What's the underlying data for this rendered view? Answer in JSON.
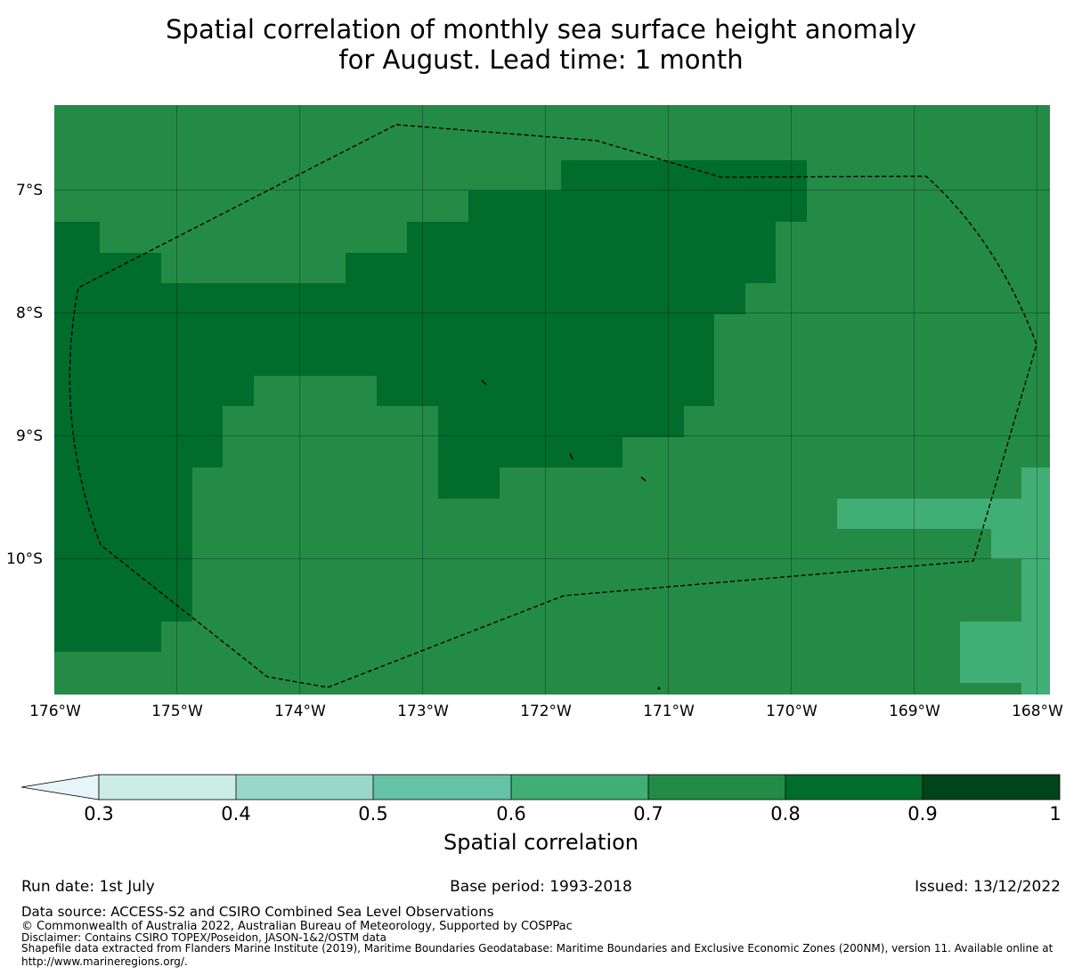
{
  "title": {
    "line1": "Spatial correlation of monthly sea surface height anomaly",
    "line2": "for August. Lead time: 1 month"
  },
  "map": {
    "lat_labels": [
      "7°S",
      "8°S",
      "9°S",
      "10°S"
    ],
    "lon_labels": [
      "176°W",
      "175°W",
      "174°W",
      "173°W",
      "172°W",
      "171°W",
      "170°W",
      "169°W",
      "168°W"
    ],
    "extent": {
      "lon": [
        -176,
        -167.9
      ],
      "lat": [
        -11.1,
        -6.3
      ]
    },
    "field": "correlation grid; dominant values 0.7–0.8 with a 0.8–0.9 core band in the north-west, and small 0.6–0.7 cells near the eastern edge",
    "boundary": "EEZ dashed outline"
  },
  "colorbar": {
    "ticks": [
      "0.3",
      "0.4",
      "0.5",
      "0.6",
      "0.7",
      "0.8",
      "0.9",
      "1"
    ],
    "colors": [
      "#e5f5f9",
      "#ccece6",
      "#99d8c9",
      "#66c2a4",
      "#41ae76",
      "#238b45",
      "#006d2c",
      "#00441b"
    ],
    "label": "Spatial correlation"
  },
  "footer": {
    "run_date": "Run date: 1st July",
    "base_period": "Base period: 1993-2018",
    "issued": "Issued: 13/12/2022",
    "data_source": "Data source: ACCESS-S2 and CSIRO Combined Sea Level Observations",
    "copyright": "© Commonwealth of Australia 2022, Australian Bureau of Meteorology, Supported by COSPPac",
    "disclaimer": "Disclaimer: Contains CSIRO TOPEX/Poseidon, JASON-1&2/OSTM data",
    "shapefile": "Shapefile data extracted from Flanders Marine Institute (2019), Maritime Boundaries Geodatabase: Maritime Boundaries and Exclusive Economic Zones (200NM), version 11. Available online at",
    "url": "http://www.marineregions.org/."
  }
}
